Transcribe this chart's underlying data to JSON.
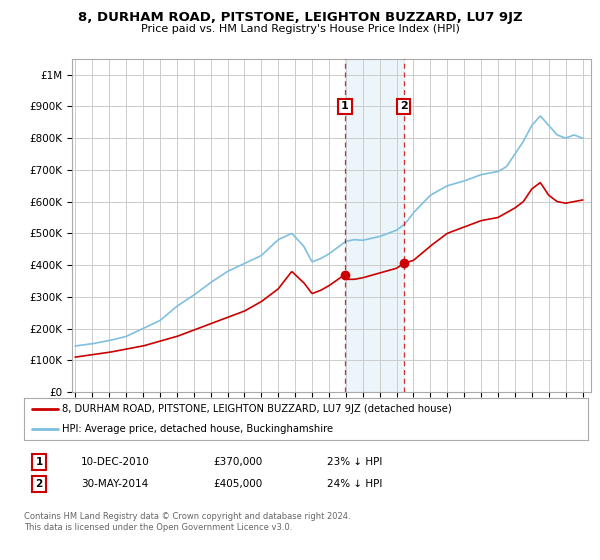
{
  "title": "8, DURHAM ROAD, PITSTONE, LEIGHTON BUZZARD, LU7 9JZ",
  "subtitle": "Price paid vs. HM Land Registry's House Price Index (HPI)",
  "ylabel_ticks": [
    "£0",
    "£100K",
    "£200K",
    "£300K",
    "£400K",
    "£500K",
    "£600K",
    "£700K",
    "£800K",
    "£900K",
    "£1M"
  ],
  "ytick_values": [
    0,
    100000,
    200000,
    300000,
    400000,
    500000,
    600000,
    700000,
    800000,
    900000,
    1000000
  ],
  "ylim": [
    0,
    1050000
  ],
  "xlim_start": 1994.8,
  "xlim_end": 2025.5,
  "hpi_color": "#7fbfdf",
  "price_color": "#cc0000",
  "purchase1_date": 2010.94,
  "purchase1_price": 370000,
  "purchase1_label": "1",
  "purchase2_date": 2014.41,
  "purchase2_price": 405000,
  "purchase2_label": "2",
  "legend_line1": "8, DURHAM ROAD, PITSTONE, LEIGHTON BUZZARD, LU7 9JZ (detached house)",
  "legend_line2": "HPI: Average price, detached house, Buckinghamshire",
  "table_row1": [
    "1",
    "10-DEC-2010",
    "£370,000",
    "23% ↓ HPI"
  ],
  "table_row2": [
    "2",
    "30-MAY-2014",
    "£405,000",
    "24% ↓ HPI"
  ],
  "footer": "Contains HM Land Registry data © Crown copyright and database right 2024.\nThis data is licensed under the Open Government Licence v3.0.",
  "background_color": "#ffffff",
  "grid_color": "#cccccc"
}
